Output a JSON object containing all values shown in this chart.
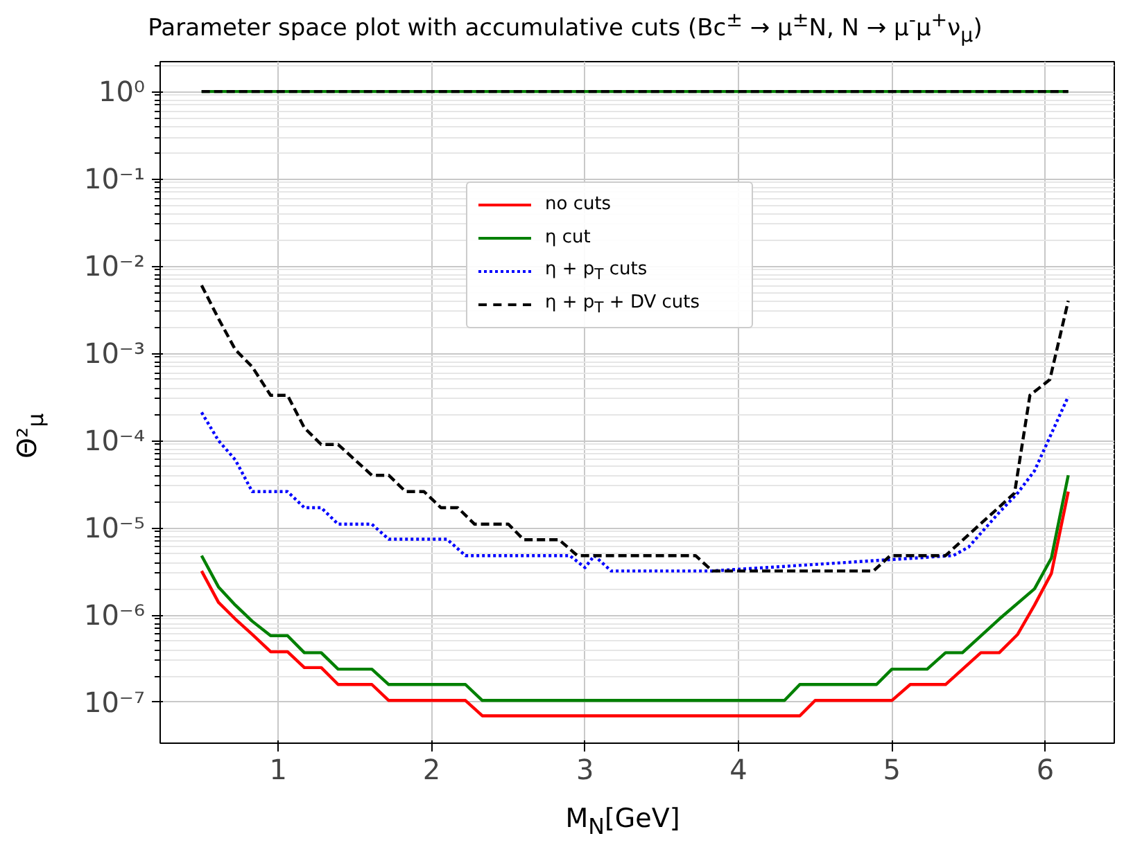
{
  "chart_data": {
    "type": "line",
    "title": "Parameter space plot with accumulative cuts (Bc$^{±}$ → μ$^{±}$N, N → μ$^{-}$μ$^{+}$ν$_{μ}$)",
    "xlabel": "M$_{N}$[GeV]",
    "ylabel": "Θ²$_{μ}$",
    "log": "y",
    "grid": true,
    "legend": "center",
    "marker": "none",
    "xlim": [
      0.23,
      6.45
    ],
    "xticks": [
      1,
      2,
      3,
      4,
      5,
      6
    ],
    "ylim": [
      3.4e-08,
      2.2
    ],
    "yticks": [
      {
        "value": 1e-07,
        "label": "10⁻⁷"
      },
      {
        "value": 1e-06,
        "label": "10⁻⁶"
      },
      {
        "value": 1e-05,
        "label": "10⁻⁵"
      },
      {
        "value": 0.0001,
        "label": "10⁻⁴"
      },
      {
        "value": 0.001,
        "label": "10⁻³"
      },
      {
        "value": 0.01,
        "label": "10⁻²"
      },
      {
        "value": 0.1,
        "label": "10⁻¹"
      },
      {
        "value": 1,
        "label": "10⁰"
      }
    ],
    "series": [
      {
        "name": "no cuts",
        "color": "#ff0000",
        "line_style": "solid",
        "x": [
          0.5,
          0.61,
          0.72,
          0.83,
          0.95,
          1.06,
          1.17,
          1.28,
          1.39,
          1.5,
          1.61,
          1.72,
          1.83,
          2.22,
          2.33,
          4.4,
          4.5,
          5.0,
          5.12,
          5.35,
          5.58,
          5.7,
          5.82,
          5.93,
          6.04,
          6.15
        ],
        "values": [
          3.2e-06,
          1.4e-06,
          9e-07,
          6e-07,
          3.8e-07,
          3.8e-07,
          2.5e-07,
          2.5e-07,
          1.6e-07,
          1.6e-07,
          1.6e-07,
          1.05e-07,
          1.05e-07,
          1.05e-07,
          7e-08,
          7e-08,
          1.05e-07,
          1.05e-07,
          1.6e-07,
          1.6e-07,
          3.7e-07,
          3.7e-07,
          6e-07,
          1.3e-06,
          3e-06,
          2.6e-05
        ]
      },
      {
        "name": "η cut",
        "color": "#008000",
        "line_style": "solid",
        "x": [
          0.5,
          0.61,
          0.72,
          0.83,
          0.95,
          1.06,
          1.17,
          1.28,
          1.39,
          1.61,
          1.72,
          2.22,
          2.33,
          4.3,
          4.4,
          4.9,
          5.0,
          5.23,
          5.35,
          5.46,
          5.7,
          5.93,
          6.04,
          6.15,
          null,
          0.5,
          6.15
        ],
        "values": [
          4.8e-06,
          2.1e-06,
          1.3e-06,
          8.5e-07,
          5.8e-07,
          5.8e-07,
          3.7e-07,
          3.7e-07,
          2.4e-07,
          2.4e-07,
          1.6e-07,
          1.6e-07,
          1.05e-07,
          1.05e-07,
          1.6e-07,
          1.6e-07,
          2.4e-07,
          2.4e-07,
          3.7e-07,
          3.7e-07,
          9e-07,
          2e-06,
          4.5e-06,
          4e-05,
          null,
          1,
          1
        ]
      },
      {
        "name": "η + p$_{T}$ cuts",
        "color": "#0000ff",
        "line_style": "dotted",
        "x": [
          0.5,
          0.61,
          0.72,
          0.83,
          0.95,
          1.06,
          1.17,
          1.28,
          1.39,
          1.61,
          1.72,
          2.1,
          2.22,
          2.9,
          3.0,
          3.06,
          3.17,
          3.83,
          5.4,
          5.5,
          5.7,
          5.82,
          5.93,
          6.04,
          6.15
        ],
        "values": [
          0.00021,
          0.0001,
          6e-05,
          2.6e-05,
          2.6e-05,
          2.6e-05,
          1.7e-05,
          1.7e-05,
          1.1e-05,
          1.1e-05,
          7.4e-06,
          7.4e-06,
          4.8e-06,
          4.8e-06,
          3.5e-06,
          4.8e-06,
          3.2e-06,
          3.2e-06,
          4.8e-06,
          6e-06,
          1.5e-05,
          2.5e-05,
          4.5e-05,
          0.00012,
          0.00032
        ]
      },
      {
        "name": "η + p$_{T}$ + DV cuts",
        "color": "#000000",
        "line_style": "dashed",
        "x": [
          0.5,
          0.61,
          0.72,
          0.83,
          0.95,
          1.06,
          1.17,
          1.28,
          1.39,
          1.61,
          1.72,
          1.83,
          1.95,
          2.06,
          2.17,
          2.28,
          2.5,
          2.6,
          2.83,
          2.95,
          3.72,
          3.83,
          4.88,
          4.99,
          5.35,
          5.8,
          5.9,
          6.03,
          6.15,
          null,
          0.5,
          6.15
        ],
        "values": [
          0.006,
          0.0025,
          0.0011,
          0.0007,
          0.00033,
          0.00033,
          0.00014,
          9e-05,
          9e-05,
          4e-05,
          4e-05,
          2.6e-05,
          2.6e-05,
          1.7e-05,
          1.7e-05,
          1.1e-05,
          1.1e-05,
          7.3e-06,
          7.3e-06,
          4.8e-06,
          4.8e-06,
          3.2e-06,
          3.2e-06,
          4.8e-06,
          4.8e-06,
          2.5e-05,
          0.00033,
          0.0005,
          0.004,
          null,
          1,
          1
        ]
      }
    ]
  }
}
